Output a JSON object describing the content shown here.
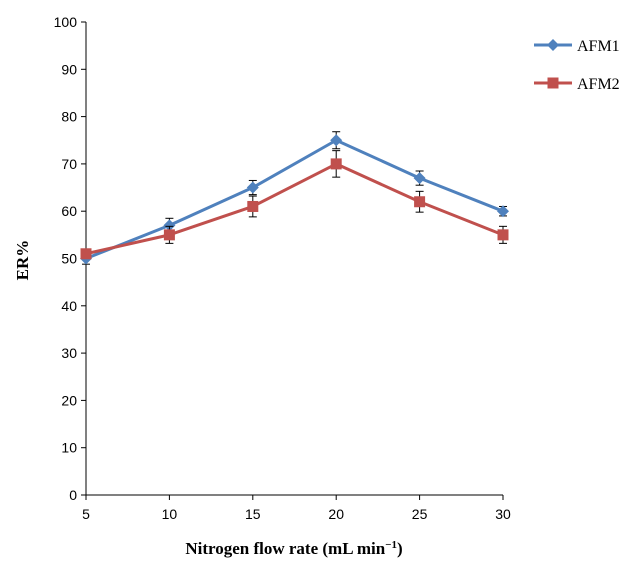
{
  "chart_data": {
    "type": "line",
    "xlabel": "Nitrogen flow rate (mL min",
    "xlabel_sup": "−1",
    "xlabel_close": ")",
    "ylabel": "ER%",
    "x": [
      5,
      10,
      15,
      20,
      25,
      30
    ],
    "xlim": [
      5,
      30
    ],
    "ylim": [
      0,
      100
    ],
    "yticks": [
      0,
      10,
      20,
      30,
      40,
      50,
      60,
      70,
      80,
      90,
      100
    ],
    "xticks": [
      5,
      10,
      15,
      20,
      25,
      30
    ],
    "grid": false,
    "legend_position": "top-right",
    "series": [
      {
        "name": "AFM1",
        "values": [
          50,
          57,
          65,
          75,
          67,
          60
        ],
        "errors": [
          1.2,
          1.5,
          1.5,
          1.8,
          1.5,
          1.0
        ],
        "color": "#4f81bd",
        "marker": "diamond"
      },
      {
        "name": "AFM2",
        "values": [
          51,
          55,
          61,
          70,
          62,
          55
        ],
        "errors": [
          1.0,
          1.8,
          2.2,
          2.8,
          2.2,
          1.8
        ],
        "color": "#c0504d",
        "marker": "square"
      }
    ]
  }
}
